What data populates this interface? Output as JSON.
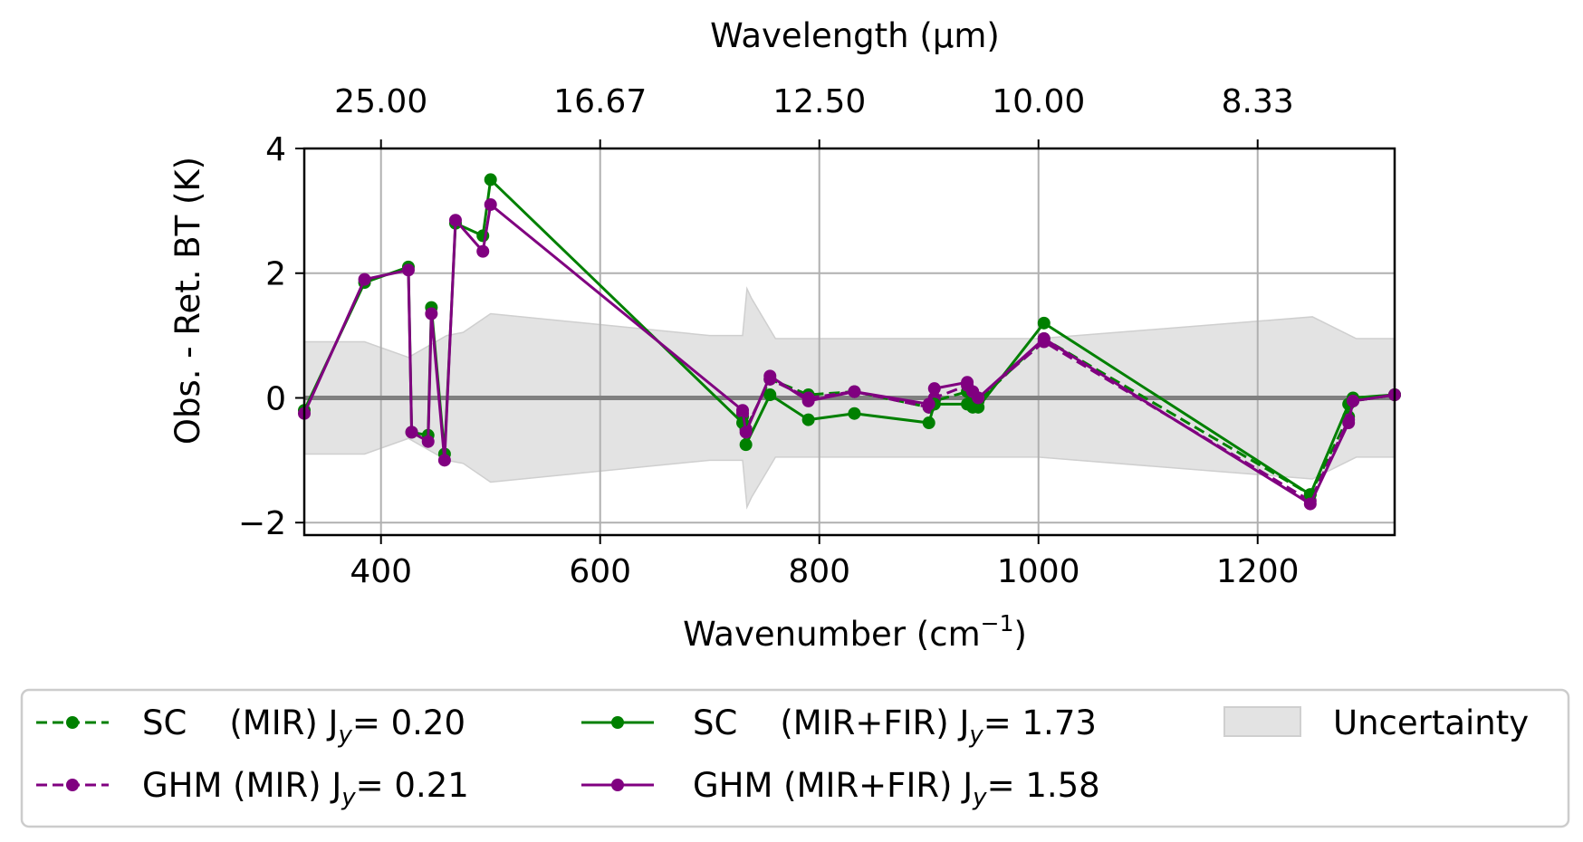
{
  "chart_data": {
    "type": "line",
    "xlabel": "Wavenumber (cm",
    "xlabel_sup": "−1",
    "xlabel_close": ")",
    "x2label": "Wavelength (µm)",
    "ylabel": "Obs. - Ret. BT (K)",
    "xlim": [
      330,
      1325
    ],
    "ylim": [
      -2.2,
      4
    ],
    "xticks": [
      400,
      600,
      800,
      1000,
      1200
    ],
    "xtick_labels": [
      "400",
      "600",
      "800",
      "1000",
      "1200"
    ],
    "x2ticks_wavenumber": [
      400,
      600,
      800,
      1000,
      1200
    ],
    "x2tick_labels": [
      "25.00",
      "16.67",
      "12.50",
      "10.00",
      "8.33"
    ],
    "yticks": [
      -2,
      0,
      2,
      4
    ],
    "ytick_labels": [
      "−2",
      "0",
      "2",
      "4"
    ],
    "grid": true,
    "zero_line": true,
    "legend_placement": "below",
    "series": [
      {
        "name": "SC    (MIR) J",
        "name_sub": "y",
        "name_suffix": "= 0.20",
        "color": "#008000",
        "style": "dashed",
        "x": [
          730,
          733,
          755,
          790,
          832,
          900,
          905,
          935,
          940,
          945,
          1005,
          1248,
          1283,
          1287,
          1325
        ],
        "y": [
          -0.3,
          -0.5,
          0.3,
          0.05,
          0.1,
          -0.15,
          -0.05,
          0.1,
          0.05,
          -0.05,
          0.95,
          -1.55,
          -0.3,
          -0.05,
          0.05
        ]
      },
      {
        "name": "GHM (MIR) J",
        "name_sub": "y",
        "name_suffix": "= 0.21",
        "color": "#800080",
        "style": "dashed",
        "x": [
          730,
          733,
          755,
          790,
          832,
          900,
          905,
          935,
          940,
          945,
          1005,
          1248,
          1283,
          1287,
          1325
        ],
        "y": [
          -0.25,
          -0.5,
          0.3,
          0.0,
          0.1,
          -0.15,
          0.0,
          0.2,
          0.1,
          0.0,
          0.9,
          -1.65,
          -0.35,
          -0.05,
          0.05
        ]
      },
      {
        "name": "SC    (MIR+FIR) J",
        "name_sub": "y",
        "name_suffix": "= 1.73",
        "color": "#008000",
        "style": "solid",
        "x": [
          330,
          385,
          425,
          428,
          443,
          446,
          458,
          468,
          493,
          500,
          730,
          733,
          755,
          790,
          832,
          900,
          905,
          935,
          940,
          945,
          1005,
          1248,
          1283,
          1287,
          1325
        ],
        "y": [
          -0.2,
          1.85,
          2.1,
          -0.55,
          -0.6,
          1.45,
          -0.9,
          2.8,
          2.6,
          3.5,
          -0.4,
          -0.75,
          0.05,
          -0.35,
          -0.25,
          -0.4,
          -0.1,
          -0.1,
          -0.15,
          -0.15,
          1.2,
          -1.55,
          -0.1,
          0.0,
          0.05
        ]
      },
      {
        "name": "GHM (MIR+FIR) J",
        "name_sub": "y",
        "name_suffix": "= 1.58",
        "color": "#800080",
        "style": "solid",
        "x": [
          330,
          385,
          425,
          428,
          443,
          446,
          458,
          468,
          493,
          500,
          730,
          733,
          755,
          790,
          832,
          900,
          905,
          935,
          940,
          945,
          1005,
          1248,
          1283,
          1287,
          1325
        ],
        "y": [
          -0.25,
          1.9,
          2.05,
          -0.55,
          -0.7,
          1.35,
          -1.0,
          2.85,
          2.35,
          3.1,
          -0.2,
          -0.55,
          0.35,
          -0.05,
          0.1,
          -0.1,
          0.15,
          0.25,
          0.1,
          0.0,
          0.95,
          -1.7,
          -0.4,
          -0.05,
          0.05
        ]
      }
    ],
    "uncertainty": {
      "name": "Uncertainty",
      "color": "#e3e3e3",
      "edge": "#cfcfcf",
      "x": [
        330,
        385,
        425,
        445,
        460,
        475,
        500,
        700,
        730,
        734,
        738,
        760,
        1000,
        1250,
        1290,
        1325
      ],
      "upper": [
        0.9,
        0.9,
        0.65,
        0.85,
        1.0,
        1.05,
        1.35,
        1.0,
        1.0,
        1.75,
        1.6,
        0.95,
        0.95,
        1.3,
        0.95,
        0.95
      ],
      "lower": [
        -0.9,
        -0.9,
        -0.65,
        -0.85,
        -1.0,
        -1.05,
        -1.35,
        -1.0,
        -1.0,
        -1.75,
        -1.6,
        -0.95,
        -0.95,
        -1.3,
        -0.95,
        -0.95
      ]
    }
  }
}
